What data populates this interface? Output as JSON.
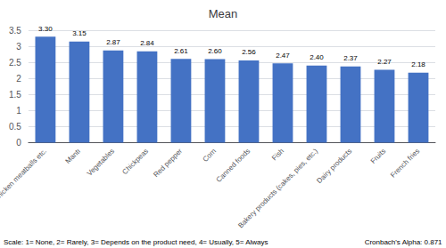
{
  "chart_data": {
    "type": "bar",
    "title": "Mean",
    "categories": [
      "Meat, chicken meatballs etc.",
      "Mantı",
      "Vegetables",
      "Chickpeas",
      "Red pepper",
      "Corn",
      "Canned foods",
      "Fish",
      "Bakery products (cakes, pies, etc.)",
      "Dairy products",
      "Fruits",
      "French fries"
    ],
    "values": [
      3.3,
      3.15,
      2.87,
      2.84,
      2.61,
      2.6,
      2.56,
      2.47,
      2.4,
      2.37,
      2.27,
      2.18
    ],
    "value_labels": [
      "3.30",
      "3.15",
      "2.87",
      "2.84",
      "2.61",
      "2.60",
      "2.56",
      "2.47",
      "2.40",
      "2.37",
      "2.27",
      "2.18"
    ],
    "data_labels": true,
    "color": "#4472C4",
    "ylim": [
      0,
      3.5
    ],
    "yticks": [
      0,
      0.5,
      1.0,
      1.5,
      2.0,
      2.5,
      3.0,
      3.5
    ],
    "grid": true,
    "annotations": [
      "Scale: 1= None, 2= Rarely, 3= Depends on the product need, 4= Usually, 5= Always",
      "Cronbach's Alpha: 0.871"
    ]
  }
}
